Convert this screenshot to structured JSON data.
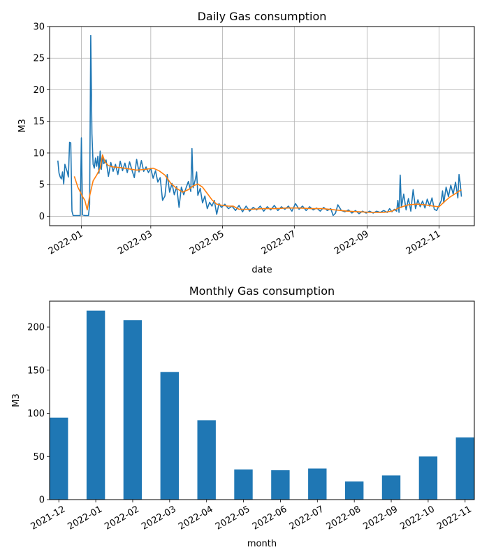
{
  "chart_data": [
    {
      "type": "line",
      "title": "Daily Gas consumption",
      "xlabel": "date",
      "ylabel": "M3",
      "xlim": [
        "2021-12-05",
        "2022-12-01"
      ],
      "ylim": [
        -1.5,
        30
      ],
      "grid": true,
      "x_ticks": [
        "2022-01-01",
        "2022-03-01",
        "2022-05-01",
        "2022-07-01",
        "2022-09-01",
        "2022-11-01"
      ],
      "x_tick_labels": [
        "2022-01",
        "2022-03",
        "2022-05",
        "2022-07",
        "2022-09",
        "2022-11"
      ],
      "y_ticks": [
        0,
        5,
        10,
        15,
        20,
        25,
        30
      ],
      "y_tick_labels": [
        "0",
        "5",
        "10",
        "15",
        "20",
        "25",
        "30"
      ],
      "colors": {
        "daily": "#1f77b4",
        "rolling": "#ff7f0e"
      },
      "series": [
        {
          "key": "daily",
          "points": [
            [
              "2021-12-12",
              8.8
            ],
            [
              "2021-12-13",
              6.8
            ],
            [
              "2021-12-14",
              6.2
            ],
            [
              "2021-12-15",
              5.9
            ],
            [
              "2021-12-16",
              7.0
            ],
            [
              "2021-12-17",
              5.1
            ],
            [
              "2021-12-18",
              8.2
            ],
            [
              "2021-12-19",
              7.6
            ],
            [
              "2021-12-20",
              7.0
            ],
            [
              "2021-12-21",
              6.2
            ],
            [
              "2021-12-22",
              11.7
            ],
            [
              "2021-12-23",
              11.6
            ],
            [
              "2021-12-24",
              0.8
            ],
            [
              "2021-12-25",
              0.1
            ],
            [
              "2021-12-26",
              0.1
            ],
            [
              "2021-12-28",
              0.1
            ],
            [
              "2021-12-30",
              0.1
            ],
            [
              "2021-12-31",
              0.1
            ],
            [
              "2022-01-01",
              12.4
            ],
            [
              "2022-01-02",
              0.2
            ],
            [
              "2022-01-04",
              0.1
            ],
            [
              "2022-01-07",
              0.1
            ],
            [
              "2022-01-08",
              1.8
            ],
            [
              "2022-01-09",
              28.6
            ],
            [
              "2022-01-10",
              13.0
            ],
            [
              "2022-01-11",
              8.2
            ],
            [
              "2022-01-12",
              7.6
            ],
            [
              "2022-01-13",
              9.2
            ],
            [
              "2022-01-14",
              7.9
            ],
            [
              "2022-01-15",
              9.5
            ],
            [
              "2022-01-16",
              6.8
            ],
            [
              "2022-01-17",
              10.3
            ],
            [
              "2022-01-18",
              7.4
            ],
            [
              "2022-01-19",
              9.6
            ],
            [
              "2022-01-20",
              8.3
            ],
            [
              "2022-01-22",
              8.9
            ],
            [
              "2022-01-24",
              6.3
            ],
            [
              "2022-01-26",
              8.5
            ],
            [
              "2022-01-28",
              7.1
            ],
            [
              "2022-01-30",
              8.2
            ],
            [
              "2022-02-01",
              6.6
            ],
            [
              "2022-02-03",
              8.7
            ],
            [
              "2022-02-05",
              7.2
            ],
            [
              "2022-02-07",
              8.4
            ],
            [
              "2022-02-09",
              6.9
            ],
            [
              "2022-02-11",
              8.6
            ],
            [
              "2022-02-13",
              7.3
            ],
            [
              "2022-02-15",
              6.1
            ],
            [
              "2022-02-17",
              9.0
            ],
            [
              "2022-02-19",
              7.0
            ],
            [
              "2022-02-21",
              8.8
            ],
            [
              "2022-02-23",
              7.1
            ],
            [
              "2022-02-25",
              7.8
            ],
            [
              "2022-02-27",
              6.9
            ],
            [
              "2022-03-01",
              7.6
            ],
            [
              "2022-03-03",
              6.0
            ],
            [
              "2022-03-05",
              7.2
            ],
            [
              "2022-03-07",
              5.4
            ],
            [
              "2022-03-09",
              6.1
            ],
            [
              "2022-03-11",
              2.5
            ],
            [
              "2022-03-13",
              3.2
            ],
            [
              "2022-03-15",
              6.6
            ],
            [
              "2022-03-17",
              3.8
            ],
            [
              "2022-03-19",
              5.2
            ],
            [
              "2022-03-21",
              3.4
            ],
            [
              "2022-03-23",
              4.7
            ],
            [
              "2022-03-25",
              1.4
            ],
            [
              "2022-03-27",
              4.6
            ],
            [
              "2022-03-29",
              3.4
            ],
            [
              "2022-03-31",
              4.5
            ],
            [
              "2022-04-02",
              5.5
            ],
            [
              "2022-04-04",
              3.9
            ],
            [
              "2022-04-05",
              10.7
            ],
            [
              "2022-04-06",
              4.5
            ],
            [
              "2022-04-08",
              5.9
            ],
            [
              "2022-04-09",
              7.0
            ],
            [
              "2022-04-10",
              3.3
            ],
            [
              "2022-04-12",
              4.4
            ],
            [
              "2022-04-14",
              2.1
            ],
            [
              "2022-04-16",
              3.2
            ],
            [
              "2022-04-18",
              1.2
            ],
            [
              "2022-04-20",
              2.2
            ],
            [
              "2022-04-22",
              1.6
            ],
            [
              "2022-04-24",
              2.5
            ],
            [
              "2022-04-26",
              0.3
            ],
            [
              "2022-04-28",
              2.0
            ],
            [
              "2022-04-30",
              1.4
            ],
            [
              "2022-05-03",
              1.9
            ],
            [
              "2022-05-06",
              1.2
            ],
            [
              "2022-05-09",
              1.6
            ],
            [
              "2022-05-12",
              0.9
            ],
            [
              "2022-05-15",
              1.7
            ],
            [
              "2022-05-18",
              0.7
            ],
            [
              "2022-05-21",
              1.6
            ],
            [
              "2022-05-24",
              0.8
            ],
            [
              "2022-05-27",
              1.4
            ],
            [
              "2022-05-30",
              1.0
            ],
            [
              "2022-06-02",
              1.6
            ],
            [
              "2022-06-05",
              0.8
            ],
            [
              "2022-06-08",
              1.5
            ],
            [
              "2022-06-11",
              1.0
            ],
            [
              "2022-06-14",
              1.7
            ],
            [
              "2022-06-17",
              0.9
            ],
            [
              "2022-06-20",
              1.5
            ],
            [
              "2022-06-23",
              1.1
            ],
            [
              "2022-06-26",
              1.6
            ],
            [
              "2022-06-29",
              0.8
            ],
            [
              "2022-07-02",
              2.0
            ],
            [
              "2022-07-05",
              1.1
            ],
            [
              "2022-07-08",
              1.6
            ],
            [
              "2022-07-11",
              0.9
            ],
            [
              "2022-07-14",
              1.5
            ],
            [
              "2022-07-17",
              1.0
            ],
            [
              "2022-07-20",
              1.3
            ],
            [
              "2022-07-23",
              0.8
            ],
            [
              "2022-07-26",
              1.4
            ],
            [
              "2022-07-29",
              0.9
            ],
            [
              "2022-08-01",
              1.2
            ],
            [
              "2022-08-03",
              0.1
            ],
            [
              "2022-08-05",
              0.5
            ],
            [
              "2022-08-07",
              1.8
            ],
            [
              "2022-08-10",
              0.9
            ],
            [
              "2022-08-13",
              0.7
            ],
            [
              "2022-08-16",
              1.0
            ],
            [
              "2022-08-19",
              0.5
            ],
            [
              "2022-08-22",
              0.9
            ],
            [
              "2022-08-25",
              0.4
            ],
            [
              "2022-08-28",
              0.8
            ],
            [
              "2022-08-31",
              0.5
            ],
            [
              "2022-09-03",
              0.8
            ],
            [
              "2022-09-06",
              0.5
            ],
            [
              "2022-09-09",
              0.8
            ],
            [
              "2022-09-12",
              0.6
            ],
            [
              "2022-09-15",
              0.9
            ],
            [
              "2022-09-18",
              0.6
            ],
            [
              "2022-09-20",
              1.2
            ],
            [
              "2022-09-22",
              0.7
            ],
            [
              "2022-09-24",
              1.1
            ],
            [
              "2022-09-26",
              0.8
            ],
            [
              "2022-09-27",
              2.5
            ],
            [
              "2022-09-28",
              0.6
            ],
            [
              "2022-09-29",
              6.5
            ],
            [
              "2022-09-30",
              1.4
            ],
            [
              "2022-10-02",
              3.5
            ],
            [
              "2022-10-04",
              1.0
            ],
            [
              "2022-10-06",
              2.8
            ],
            [
              "2022-10-08",
              0.8
            ],
            [
              "2022-10-10",
              4.2
            ],
            [
              "2022-10-12",
              1.2
            ],
            [
              "2022-10-14",
              2.6
            ],
            [
              "2022-10-16",
              1.5
            ],
            [
              "2022-10-18",
              2.4
            ],
            [
              "2022-10-20",
              1.3
            ],
            [
              "2022-10-22",
              2.7
            ],
            [
              "2022-10-24",
              1.6
            ],
            [
              "2022-10-26",
              2.9
            ],
            [
              "2022-10-28",
              1.1
            ],
            [
              "2022-10-30",
              0.9
            ],
            [
              "2022-11-01",
              1.7
            ],
            [
              "2022-11-03",
              2.5
            ],
            [
              "2022-11-04",
              4.0
            ],
            [
              "2022-11-05",
              2.1
            ],
            [
              "2022-11-07",
              4.6
            ],
            [
              "2022-11-09",
              3.1
            ],
            [
              "2022-11-11",
              4.9
            ],
            [
              "2022-11-13",
              3.5
            ],
            [
              "2022-11-15",
              5.4
            ],
            [
              "2022-11-17",
              2.9
            ],
            [
              "2022-11-18",
              6.6
            ],
            [
              "2022-11-19",
              5.2
            ],
            [
              "2022-11-20",
              3.1
            ]
          ]
        },
        {
          "key": "rolling",
          "points": [
            [
              "2021-12-26",
              6.3
            ],
            [
              "2021-12-29",
              4.6
            ],
            [
              "2022-01-02",
              3.1
            ],
            [
              "2022-01-04",
              2.5
            ],
            [
              "2022-01-06",
              1.0
            ],
            [
              "2022-01-08",
              3.2
            ],
            [
              "2022-01-11",
              5.6
            ],
            [
              "2022-01-14",
              6.5
            ],
            [
              "2022-01-17",
              7.6
            ],
            [
              "2022-01-19",
              9.7
            ],
            [
              "2022-01-21",
              8.6
            ],
            [
              "2022-01-24",
              8.0
            ],
            [
              "2022-01-28",
              7.8
            ],
            [
              "2022-02-03",
              7.7
            ],
            [
              "2022-02-10",
              7.5
            ],
            [
              "2022-02-17",
              7.3
            ],
            [
              "2022-02-24",
              7.4
            ],
            [
              "2022-03-03",
              7.6
            ],
            [
              "2022-03-08",
              7.2
            ],
            [
              "2022-03-13",
              6.5
            ],
            [
              "2022-03-18",
              5.2
            ],
            [
              "2022-03-23",
              4.4
            ],
            [
              "2022-03-28",
              3.8
            ],
            [
              "2022-04-02",
              4.2
            ],
            [
              "2022-04-06",
              4.8
            ],
            [
              "2022-04-10",
              5.1
            ],
            [
              "2022-04-14",
              4.6
            ],
            [
              "2022-04-18",
              3.6
            ],
            [
              "2022-04-22",
              2.6
            ],
            [
              "2022-04-26",
              1.9
            ],
            [
              "2022-05-01",
              1.7
            ],
            [
              "2022-05-06",
              1.6
            ],
            [
              "2022-05-10",
              1.6
            ],
            [
              "2022-05-15",
              1.1
            ],
            [
              "2022-05-25",
              1.1
            ],
            [
              "2022-06-05",
              1.2
            ],
            [
              "2022-06-15",
              1.2
            ],
            [
              "2022-06-25",
              1.3
            ],
            [
              "2022-07-05",
              1.3
            ],
            [
              "2022-07-15",
              1.2
            ],
            [
              "2022-07-25",
              1.2
            ],
            [
              "2022-08-05",
              1.0
            ],
            [
              "2022-08-15",
              0.8
            ],
            [
              "2022-08-25",
              0.7
            ],
            [
              "2022-09-05",
              0.6
            ],
            [
              "2022-09-15",
              0.6
            ],
            [
              "2022-09-22",
              0.8
            ],
            [
              "2022-09-29",
              1.4
            ],
            [
              "2022-10-06",
              1.8
            ],
            [
              "2022-10-13",
              1.9
            ],
            [
              "2022-10-20",
              1.8
            ],
            [
              "2022-10-27",
              1.6
            ],
            [
              "2022-11-01",
              1.5
            ],
            [
              "2022-11-05",
              2.2
            ],
            [
              "2022-11-10",
              3.0
            ],
            [
              "2022-11-15",
              3.6
            ],
            [
              "2022-11-20",
              4.2
            ]
          ]
        }
      ]
    },
    {
      "type": "bar",
      "title": "Monthly Gas consumption",
      "xlabel": "month",
      "ylabel": "M3",
      "ylim": [
        0,
        230
      ],
      "grid": false,
      "color": "#1f77b4",
      "y_ticks": [
        0,
        50,
        100,
        150,
        200
      ],
      "y_tick_labels": [
        "0",
        "50",
        "100",
        "150",
        "200"
      ],
      "categories": [
        "2021-12",
        "2022-01",
        "2022-02",
        "2022-03",
        "2022-04",
        "2022-05",
        "2022-06",
        "2022-07",
        "2022-08",
        "2022-09",
        "2022-10",
        "2022-11"
      ],
      "values": [
        95,
        219,
        208,
        148,
        92,
        35,
        34,
        36,
        21,
        28,
        50,
        72
      ]
    }
  ]
}
